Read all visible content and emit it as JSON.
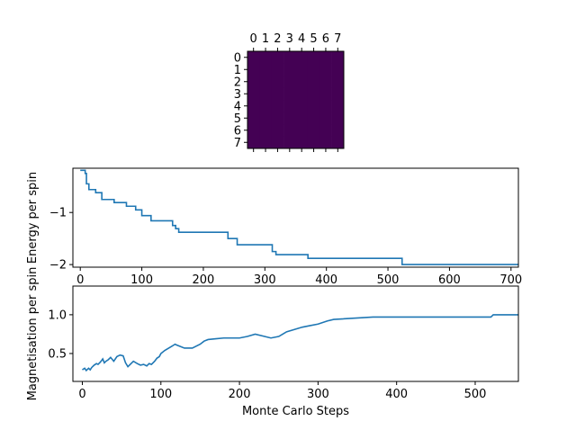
{
  "chart_data": [
    {
      "type": "heatmap",
      "rows": 8,
      "cols": 8,
      "values": [
        [
          1,
          1,
          1,
          1,
          1,
          1,
          1,
          1
        ],
        [
          1,
          1,
          1,
          1,
          1,
          1,
          1,
          1
        ],
        [
          1,
          1,
          1,
          1,
          1,
          1,
          1,
          1
        ],
        [
          1,
          1,
          1,
          1,
          1,
          1,
          1,
          1
        ],
        [
          1,
          1,
          1,
          1,
          1,
          1,
          1,
          1
        ],
        [
          1,
          1,
          1,
          1,
          1,
          1,
          1,
          1
        ],
        [
          1,
          1,
          1,
          1,
          1,
          1,
          1,
          1
        ],
        [
          1,
          1,
          1,
          1,
          1,
          1,
          1,
          1
        ]
      ],
      "cell_color": "#440154",
      "xticks": [
        "0",
        "1",
        "2",
        "3",
        "4",
        "5",
        "6",
        "7"
      ],
      "yticks": [
        "0",
        "1",
        "2",
        "3",
        "4",
        "5",
        "6",
        "7"
      ],
      "xtick_position": "top"
    },
    {
      "type": "line",
      "ylabel": "Energy per spin",
      "xlim": [
        -12,
        712
      ],
      "ylim": [
        -2.05,
        -0.15
      ],
      "xticks": [
        0,
        100,
        200,
        300,
        400,
        500,
        600,
        700
      ],
      "yticks": [
        -1,
        -2
      ],
      "yticklabels": [
        "−1",
        "−2"
      ],
      "color": "#1f77b4",
      "steps": [
        [
          0,
          -0.19
        ],
        [
          8,
          -0.25
        ],
        [
          10,
          -0.45
        ],
        [
          14,
          -0.56
        ],
        [
          25,
          -0.62
        ],
        [
          35,
          -0.75
        ],
        [
          55,
          -0.81
        ],
        [
          75,
          -0.88
        ],
        [
          90,
          -0.95
        ],
        [
          100,
          -1.06
        ],
        [
          115,
          -1.16
        ],
        [
          150,
          -1.25
        ],
        [
          155,
          -1.31
        ],
        [
          160,
          -1.38
        ],
        [
          240,
          -1.5
        ],
        [
          255,
          -1.62
        ],
        [
          312,
          -1.75
        ],
        [
          318,
          -1.81
        ],
        [
          370,
          -1.88
        ],
        [
          523,
          -2.0
        ],
        [
          712,
          -2.0
        ]
      ]
    },
    {
      "type": "line",
      "xlabel": "Monte Carlo Steps",
      "ylabel": "Magnetisation per spin",
      "xlim": [
        -12,
        555
      ],
      "ylim": [
        0.14,
        1.37
      ],
      "xticks": [
        0,
        100,
        200,
        300,
        400,
        500
      ],
      "yticks": [
        0.5,
        1.0
      ],
      "yticklabels": [
        "0.5",
        "1.0"
      ],
      "color": "#1f77b4",
      "x": [
        0,
        3,
        5,
        8,
        10,
        12,
        15,
        18,
        20,
        23,
        26,
        28,
        30,
        33,
        36,
        40,
        44,
        48,
        52,
        55,
        58,
        62,
        65,
        70,
        74,
        78,
        82,
        85,
        88,
        92,
        95,
        98,
        100,
        105,
        110,
        115,
        118,
        120,
        125,
        130,
        140,
        150,
        155,
        160,
        170,
        180,
        200,
        210,
        220,
        232,
        240,
        250,
        255,
        260,
        270,
        280,
        290,
        300,
        312,
        320,
        370,
        400,
        450,
        520,
        523,
        555
      ],
      "y": [
        0.29,
        0.31,
        0.28,
        0.31,
        0.29,
        0.32,
        0.35,
        0.37,
        0.36,
        0.39,
        0.43,
        0.38,
        0.4,
        0.42,
        0.45,
        0.4,
        0.46,
        0.48,
        0.47,
        0.38,
        0.33,
        0.37,
        0.4,
        0.37,
        0.35,
        0.36,
        0.34,
        0.37,
        0.36,
        0.4,
        0.44,
        0.46,
        0.5,
        0.54,
        0.57,
        0.6,
        0.62,
        0.61,
        0.59,
        0.57,
        0.57,
        0.62,
        0.66,
        0.68,
        0.69,
        0.7,
        0.7,
        0.72,
        0.75,
        0.72,
        0.7,
        0.72,
        0.75,
        0.78,
        0.81,
        0.84,
        0.86,
        0.88,
        0.92,
        0.94,
        0.97,
        0.97,
        0.97,
        0.97,
        1.0,
        1.0
      ]
    }
  ]
}
